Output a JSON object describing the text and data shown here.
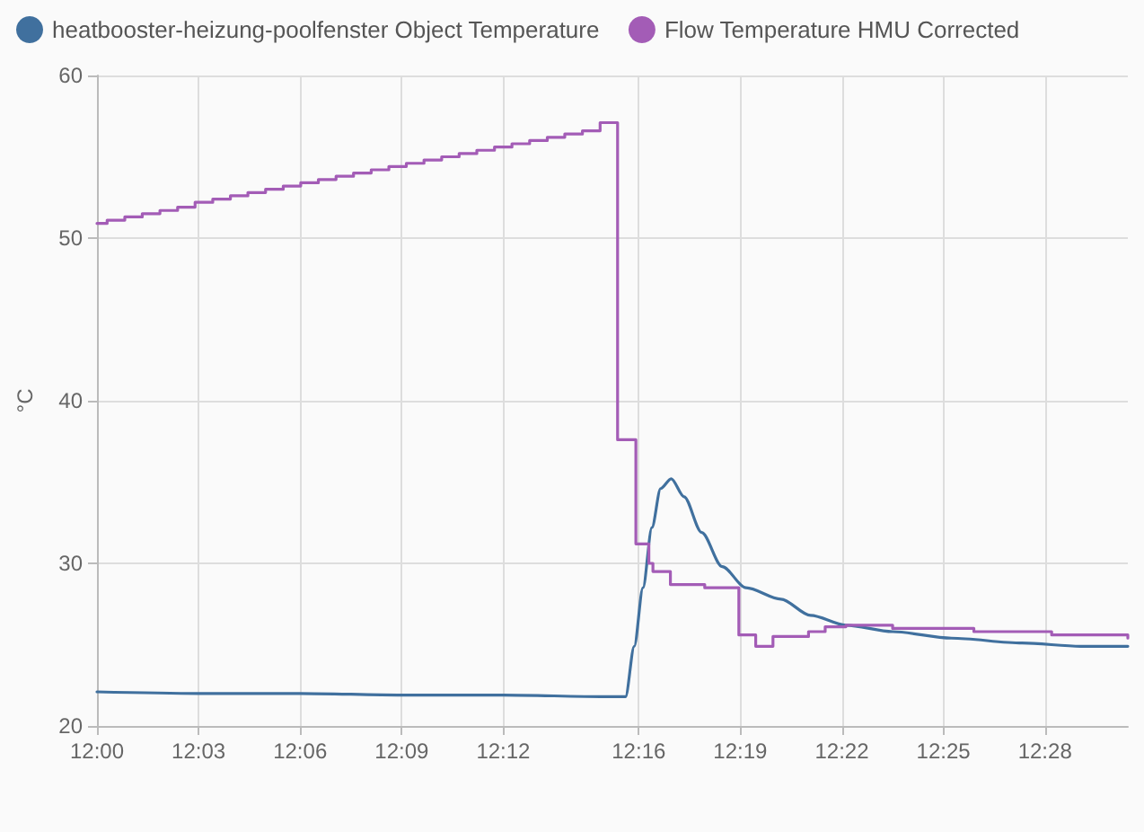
{
  "chart_data": {
    "type": "line",
    "ylabel": "°C",
    "xlim": [
      12,
      12.5075
    ],
    "ylim": [
      20,
      60
    ],
    "xticks": [
      {
        "value": 12,
        "label": "12:00"
      },
      {
        "value": 12.05,
        "label": "12:03"
      },
      {
        "value": 12.1,
        "label": "12:06"
      },
      {
        "value": 12.15,
        "label": "12:09"
      },
      {
        "value": 12.2,
        "label": "12:12"
      },
      {
        "value": 12.2667,
        "label": "12:16"
      },
      {
        "value": 12.3167,
        "label": "12:19"
      },
      {
        "value": 12.3667,
        "label": "12:22"
      },
      {
        "value": 12.4167,
        "label": "12:25"
      },
      {
        "value": 12.4667,
        "label": "12:28"
      }
    ],
    "yticks": [
      20,
      30,
      40,
      50,
      60
    ],
    "grid": true,
    "legend": "top left",
    "marker": "none",
    "series": [
      {
        "name": "heatbooster-heizung-poolfenster Object Temperature",
        "color": "#40709e",
        "x": [
          12,
          12.05,
          12.1,
          12.15,
          12.2,
          12.25,
          12.2602,
          12.2645,
          12.2688,
          12.2732,
          12.2775,
          12.2827,
          12.289,
          12.2977,
          12.3078,
          12.3195,
          12.3367,
          12.3513,
          12.3687,
          12.3917,
          12.4207,
          12.4555,
          12.4843,
          12.5075
        ],
        "values": [
          22.1,
          22,
          22,
          21.9,
          21.9,
          21.8,
          21.8,
          24.9,
          28.5,
          32.2,
          34.6,
          35.2,
          34.1,
          31.9,
          29.8,
          28.5,
          27.8,
          26.8,
          26.2,
          25.8,
          25.4,
          25.1,
          24.9,
          24.9
        ]
      },
      {
        "name": "Flow Temperature HMU Corrected",
        "type": "step",
        "color": "#a35cb6",
        "x": [
          12,
          12.005,
          12.0137,
          12.0223,
          12.031,
          12.0397,
          12.0483,
          12.057,
          12.0657,
          12.0743,
          12.083,
          12.0917,
          12.1003,
          12.109,
          12.1177,
          12.1263,
          12.135,
          12.1437,
          12.1523,
          12.161,
          12.1697,
          12.1783,
          12.187,
          12.1957,
          12.2043,
          12.213,
          12.2217,
          12.2303,
          12.239,
          12.2477,
          12.2563,
          12.2653,
          12.2717,
          12.2737,
          12.2823,
          12.2992,
          12.316,
          12.3243,
          12.3328,
          12.3503,
          12.3585,
          12.3687,
          12.3917,
          12.4317,
          12.47,
          12.5075
        ],
        "values": [
          50.9,
          51.1,
          51.3,
          51.5,
          51.7,
          51.9,
          52.2,
          52.4,
          52.6,
          52.8,
          53,
          53.2,
          53.4,
          53.6,
          53.8,
          54,
          54.2,
          54.4,
          54.6,
          54.8,
          55,
          55.2,
          55.4,
          55.6,
          55.8,
          56,
          56.2,
          56.4,
          56.6,
          57.1,
          37.6,
          31.2,
          30,
          29.5,
          28.7,
          28.5,
          25.6,
          24.9,
          25.5,
          25.8,
          26.1,
          26.2,
          26,
          25.8,
          25.6,
          25.4
        ]
      }
    ]
  }
}
